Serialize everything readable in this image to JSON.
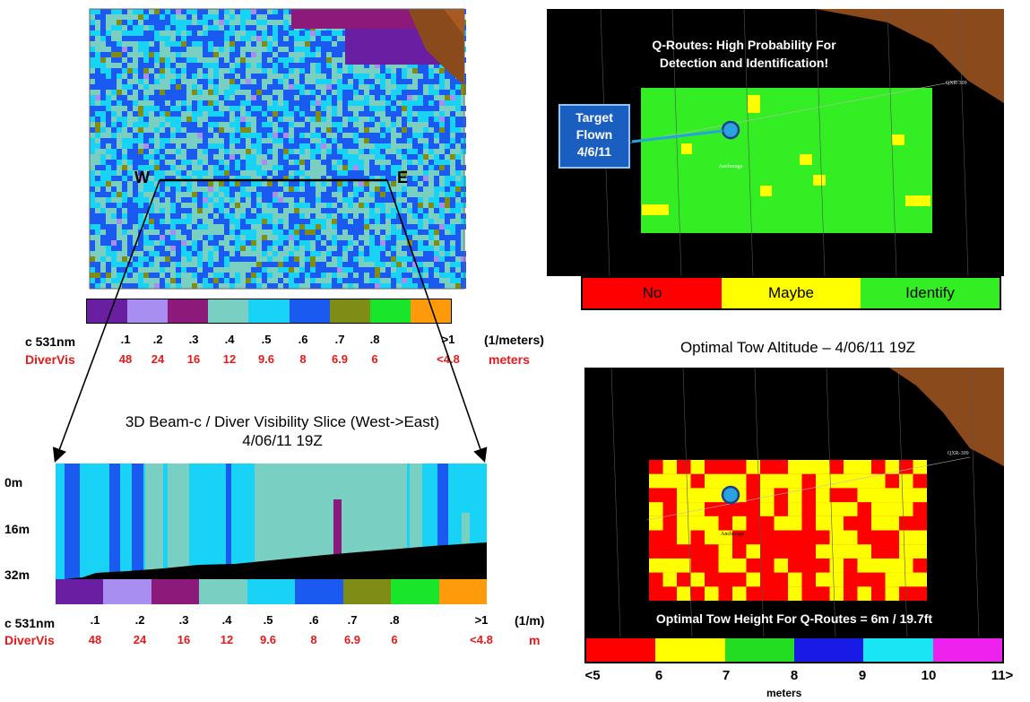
{
  "top_left_map": {
    "label_w": "W",
    "label_e": "E"
  },
  "top_legend": {
    "colors": [
      "#6a1fa3",
      "#a98ef2",
      "#8c1a7a",
      "#79cfc2",
      "#18d3f5",
      "#1a5af0",
      "#7f8c16",
      "#19e62a",
      "#ff9a0a"
    ],
    "row1_label": "c 531nm",
    "row1_ticks": [
      ".1",
      ".2",
      ".3",
      ".4",
      ".5",
      ".6",
      ".7",
      ".8",
      ">1"
    ],
    "row1_unit": "(1/meters)",
    "row2_label": "DiverVis",
    "row2_ticks": [
      "48",
      "24",
      "16",
      "12",
      "9.6",
      "8",
      "6.9",
      "6",
      "<4.8"
    ],
    "row2_unit": "meters"
  },
  "slice": {
    "title_line1": "3D Beam-c / Diver Visibility Slice  (West->East)",
    "title_line2": "4/06/11 19Z",
    "depth_labels": [
      "0m",
      "16m",
      "32m"
    ],
    "legend_colors": [
      "#6a1fa3",
      "#a98ef2",
      "#8c1a7a",
      "#79cfc2",
      "#18d3f5",
      "#1a5af0",
      "#7f8c16",
      "#19e62a",
      "#ff9a0a"
    ],
    "row1_label": "c 531nm",
    "row1_ticks": [
      ".1",
      ".2",
      ".3",
      ".4",
      ".5",
      ".6",
      ".7",
      ".8",
      ">1"
    ],
    "row1_unit": "(1/m)",
    "row2_label": "DiverVis",
    "row2_ticks": [
      "48",
      "24",
      "16",
      "12",
      "9.6",
      "8",
      "6.9",
      "6",
      "<4.8"
    ],
    "row2_unit": "m"
  },
  "top_right_map": {
    "callout_line1": "Q-Routes: High Probability For",
    "callout_line2": "Detection and Identification!",
    "target_line1": "Target",
    "target_line2": "Flown",
    "target_line3": "4/6/11",
    "route_label": "QXR-309",
    "anchorage_label": "Anchorage",
    "legend": [
      {
        "label": "No",
        "color": "#ff0000"
      },
      {
        "label": "Maybe",
        "color": "#ffff00"
      },
      {
        "label": "Identify",
        "color": "#33ee22"
      }
    ]
  },
  "bottom_right_map": {
    "title": "Optimal Tow Altitude – 4/06/11 19Z",
    "route_label": "QXR-309",
    "anchorage_label": "Anchorage",
    "footer": "Optimal Tow Height For Q-Routes = 6m / 19.7ft",
    "legend_colors": [
      "#ff0000",
      "#ffff00",
      "#22dd22",
      "#1a1ae6",
      "#18e6f5",
      "#ee22ee"
    ],
    "ticks": [
      "<5",
      "6",
      "7",
      "8",
      "9",
      "10",
      "11>"
    ],
    "unit": "meters"
  }
}
